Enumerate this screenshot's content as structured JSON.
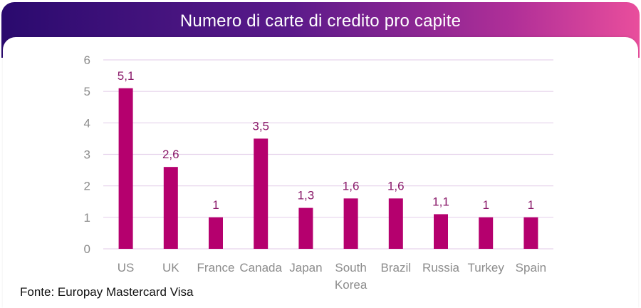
{
  "header": {
    "title": "Numero di carte di credito pro capite"
  },
  "footer": {
    "source": "Fonte: Europay Mastercard Visa"
  },
  "colors": {
    "bar": "#b5006e",
    "label": "#8a1a6a",
    "grid": "#e6d3ec",
    "tick": "#8c8c8c"
  },
  "chart_data": {
    "type": "bar",
    "title": "Numero di carte di credito pro capite",
    "categories": [
      "US",
      "UK",
      "France",
      "Canada",
      "Japan",
      "South Korea",
      "Brazil",
      "Russia",
      "Turkey",
      "Spain"
    ],
    "values": [
      5.1,
      2.6,
      1,
      3.5,
      1.3,
      1.6,
      1.6,
      1.1,
      1,
      1
    ],
    "value_labels": [
      "5,1",
      "2,6",
      "1",
      "3,5",
      "1,3",
      "1,6",
      "1,6",
      "1,1",
      "1",
      "1"
    ],
    "yticks": [
      "0",
      "1",
      "2",
      "3",
      "4",
      "5",
      "6"
    ],
    "ylim": [
      0,
      6
    ],
    "grid": true,
    "legend": "none"
  }
}
